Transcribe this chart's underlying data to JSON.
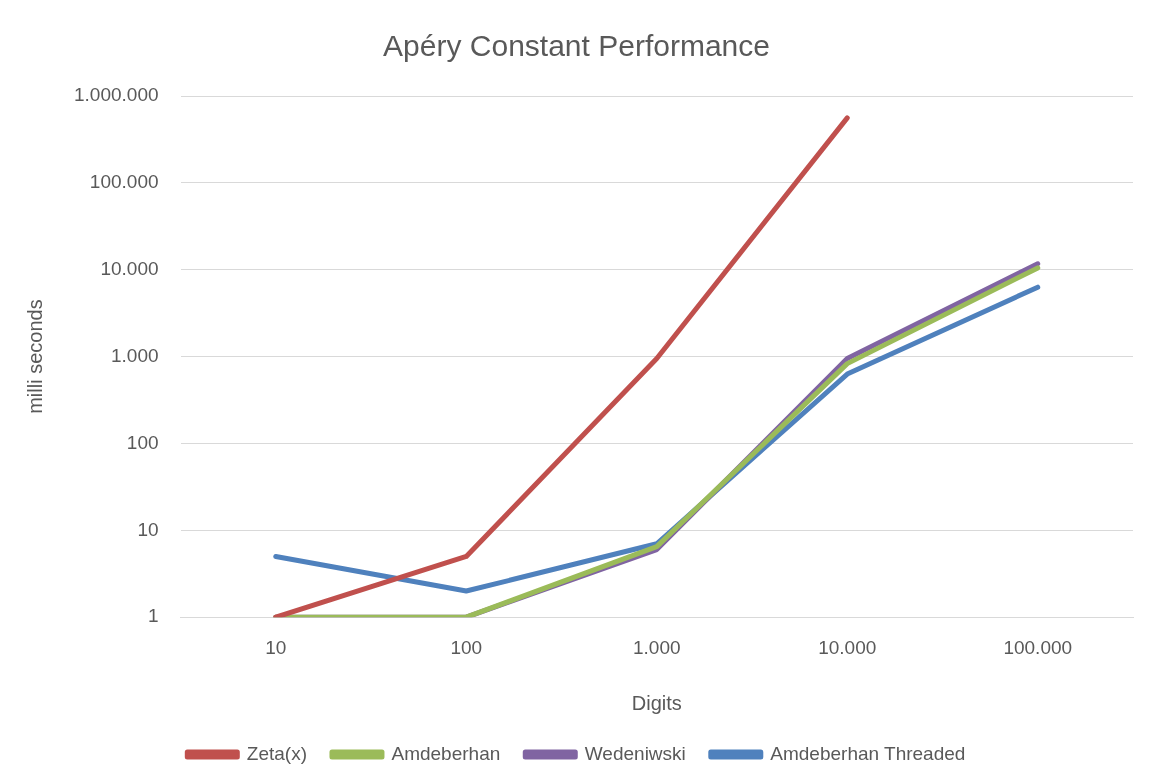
{
  "chart_data": {
    "type": "line",
    "title": "Apéry Constant Performance",
    "xlabel": "Digits",
    "ylabel": "milli seconds",
    "categories": [
      "10",
      "100",
      "1.000",
      "10.000",
      "100.000"
    ],
    "series": [
      {
        "name": "Zeta(x)",
        "color": "#c0504d",
        "values": [
          1,
          5,
          950,
          560000,
          null
        ]
      },
      {
        "name": "Amdeberhan",
        "color": "#9bbb59",
        "values": [
          1,
          1,
          6.5,
          830,
          10500
        ]
      },
      {
        "name": "Wedeniwski",
        "color": "#8064a2",
        "values": [
          1,
          1,
          6,
          950,
          11700
        ]
      },
      {
        "name": "Amdeberhan Threaded",
        "color": "#4f81bd",
        "values": [
          5,
          2,
          7,
          630,
          6300
        ]
      }
    ],
    "log": "y",
    "ylim": [
      1,
      1000000
    ],
    "yticks": [
      1,
      10,
      100,
      {
        "value": 1000,
        "label": "1.000"
      },
      {
        "value": 10000,
        "label": "10.000"
      },
      {
        "value": 100000,
        "label": "100.000"
      },
      {
        "value": 1000000,
        "label": "1.000.000"
      }
    ],
    "grid": "y",
    "legend": "bottom",
    "marker": "none",
    "line_style": "solid"
  }
}
